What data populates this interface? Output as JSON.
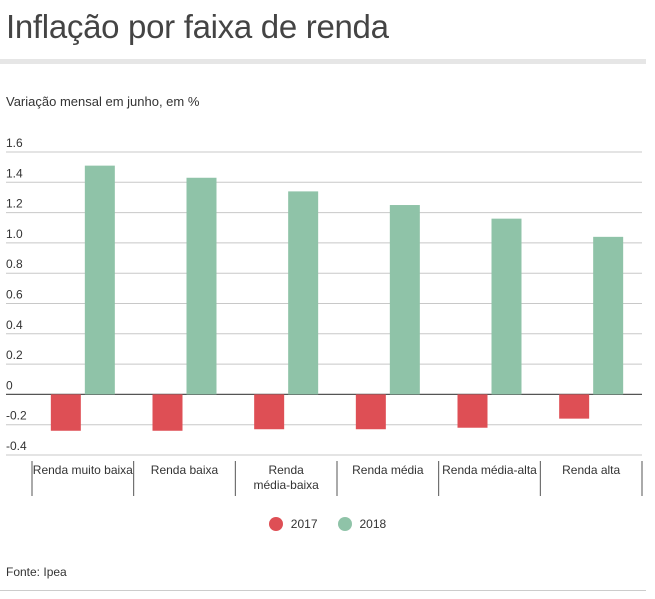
{
  "header": {
    "title": "Inflação por faixa de renda",
    "subtitle": "Variação mensal em junho, em %"
  },
  "footer": {
    "source": "Fonte: Ipea"
  },
  "colors": {
    "series_2017": "#de4f55",
    "series_2018": "#8fc3a8",
    "grid": "#c8c8c8",
    "axis": "#555555"
  },
  "chart_data": {
    "type": "bar",
    "title": "Inflação por faixa de renda",
    "subtitle": "Variação mensal em junho, em %",
    "xlabel": "",
    "ylabel": "",
    "categories": [
      [
        "Renda muito baixa"
      ],
      [
        "Renda baixa"
      ],
      [
        "Renda",
        "média-baixa"
      ],
      [
        "Renda média"
      ],
      [
        "Renda média-alta"
      ],
      [
        "Renda alta"
      ]
    ],
    "series": [
      {
        "name": "2017",
        "color": "#de4f55",
        "values": [
          -0.24,
          -0.24,
          -0.23,
          -0.23,
          -0.22,
          -0.16
        ]
      },
      {
        "name": "2018",
        "color": "#8fc3a8",
        "values": [
          1.51,
          1.43,
          1.34,
          1.25,
          1.16,
          1.04
        ]
      }
    ],
    "ylim": [
      -0.4,
      1.6
    ],
    "yticks": [
      "1.6",
      "1.4",
      "1.2",
      "1.0",
      "0.8",
      "0.6",
      "0.4",
      "0.2",
      "0",
      "-0.2",
      "-0.4"
    ],
    "grid": true,
    "legend": "bottom-center"
  }
}
